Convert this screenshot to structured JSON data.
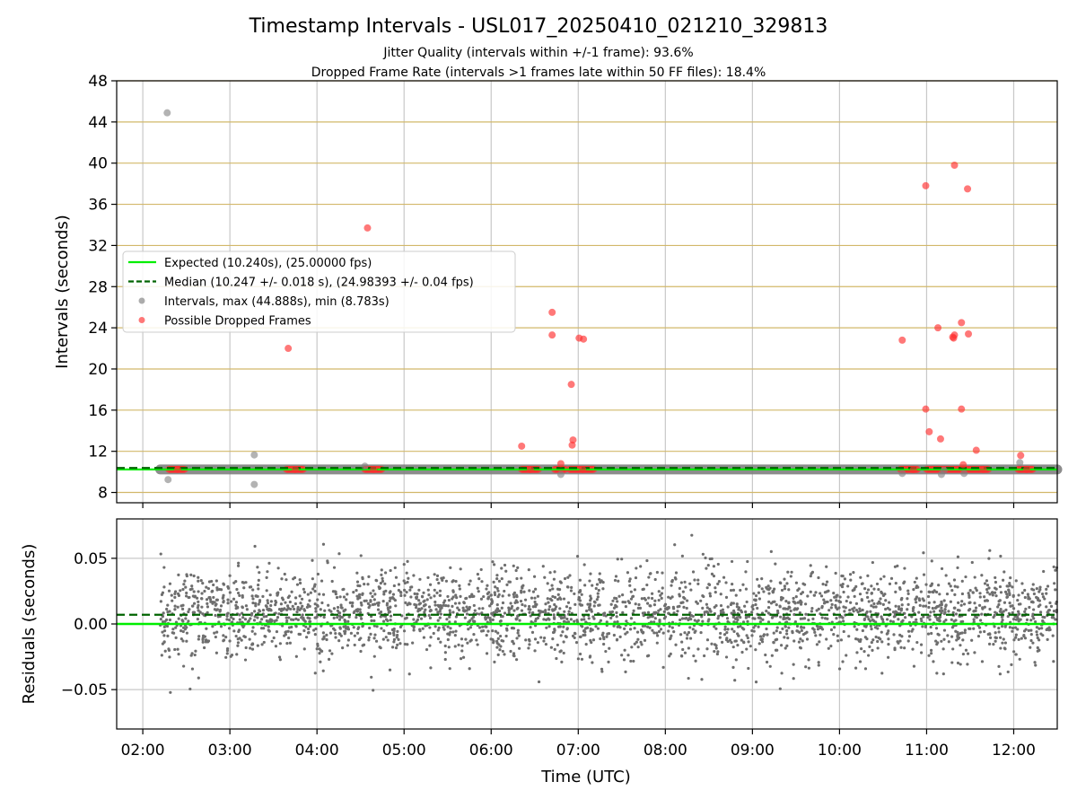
{
  "chart_data": [
    {
      "type": "scatter",
      "title": "Timestamp Intervals - USL017_20250410_021210_329813",
      "subtitle_lines": [
        "Jitter Quality (intervals within +/-1 frame): 93.6%",
        "Dropped Frame Rate (intervals >1 frames late within 50 FF files): 18.4%"
      ],
      "xlabel": "",
      "ylabel": "Intervals (seconds)",
      "x_unit": "hours UTC",
      "xlim": [
        1.7,
        12.5
      ],
      "ylim": [
        7,
        48
      ],
      "x_tick_labels": [
        "02:00",
        "03:00",
        "04:00",
        "05:00",
        "06:00",
        "07:00",
        "08:00",
        "09:00",
        "10:00",
        "11:00",
        "12:00"
      ],
      "x_ticks": [
        2,
        3,
        4,
        5,
        6,
        7,
        8,
        9,
        10,
        11,
        12
      ],
      "y_ticks": [
        8,
        12,
        16,
        20,
        24,
        28,
        32,
        36,
        40,
        44,
        48
      ],
      "grid": "on",
      "legend_position": "center-left",
      "legend": [
        "Expected (10.240s), (25.00000 fps)",
        "Median (10.247 +/- 0.018 s), (24.98393 +/- 0.04 fps)",
        "Intervals, max (44.888s), min (8.783s)",
        "Possible Dropped Frames"
      ],
      "expected": 10.24,
      "median": 10.247,
      "interval_band": {
        "x_range": [
          2.2,
          12.5
        ],
        "y": 10.24
      },
      "series": [
        {
          "name": "Intervals, max (44.888s), min (8.783s)",
          "points": [
            [
              2.28,
              44.89
            ],
            [
              2.29,
              9.25
            ],
            [
              3.28,
              11.65
            ],
            [
              3.28,
              8.78
            ],
            [
              4.55,
              10.55
            ],
            [
              6.8,
              9.75
            ],
            [
              10.72,
              9.85
            ],
            [
              11.17,
              9.75
            ],
            [
              11.43,
              9.85
            ],
            [
              12.07,
              10.9
            ],
            [
              11.2,
              10.15
            ]
          ]
        },
        {
          "name": "Possible Dropped Frames",
          "points": [
            [
              2.4,
              10.24
            ],
            [
              3.67,
              22.0
            ],
            [
              3.75,
              10.24
            ],
            [
              4.58,
              33.7
            ],
            [
              4.65,
              10.24
            ],
            [
              6.35,
              12.5
            ],
            [
              6.45,
              10.24
            ],
            [
              6.7,
              25.5
            ],
            [
              6.7,
              23.3
            ],
            [
              6.8,
              10.8
            ],
            [
              6.92,
              18.5
            ],
            [
              6.93,
              12.6
            ],
            [
              6.94,
              13.1
            ],
            [
              7.01,
              23.0
            ],
            [
              7.06,
              22.9
            ],
            [
              7.05,
              10.24
            ],
            [
              10.72,
              22.8
            ],
            [
              10.85,
              10.24
            ],
            [
              10.99,
              37.8
            ],
            [
              10.99,
              16.1
            ],
            [
              11.03,
              13.9
            ],
            [
              11.13,
              24.0
            ],
            [
              11.16,
              13.2
            ],
            [
              11.32,
              39.8
            ],
            [
              11.3,
              23.1
            ],
            [
              11.32,
              23.3
            ],
            [
              11.31,
              23.0
            ],
            [
              11.4,
              24.5
            ],
            [
              11.4,
              16.1
            ],
            [
              11.47,
              37.5
            ],
            [
              11.48,
              23.4
            ],
            [
              11.42,
              10.7
            ],
            [
              11.57,
              12.1
            ],
            [
              11.65,
              10.24
            ],
            [
              12.08,
              11.6
            ],
            [
              12.15,
              10.24
            ]
          ],
          "clusters": [
            [
              2.3,
              2.48
            ],
            [
              3.65,
              3.85
            ],
            [
              4.55,
              4.75
            ],
            [
              6.35,
              6.55
            ],
            [
              6.73,
              6.86
            ],
            [
              6.9,
              7.18
            ],
            [
              10.7,
              10.9
            ],
            [
              11.0,
              11.72
            ],
            [
              12.05,
              12.22
            ]
          ]
        }
      ]
    },
    {
      "type": "scatter",
      "title": "",
      "xlabel": "Time (UTC)",
      "ylabel": "Residuals (seconds)",
      "xlim": [
        1.7,
        12.5
      ],
      "ylim": [
        -0.08,
        0.08
      ],
      "y_ticks": [
        -0.05,
        0.0,
        0.05
      ],
      "y_tick_labels": [
        "−0.05",
        "0.00",
        "0.05"
      ],
      "grid": "on",
      "expected_residual": 0.0,
      "median_residual": 0.007,
      "series": [
        {
          "name": "",
          "description": "dense residual points",
          "x_range": [
            2.2,
            12.5
          ],
          "center": 0.007,
          "spread_std": 0.017
        }
      ]
    }
  ],
  "colors": {
    "expected": "#00ee00",
    "median": "#006400",
    "intervals": "#808080",
    "dropped": "#ff3030",
    "ygrid_top": "#d2b86a",
    "grid": "#c8c8c8",
    "residual_points": "#6e6e6e"
  }
}
